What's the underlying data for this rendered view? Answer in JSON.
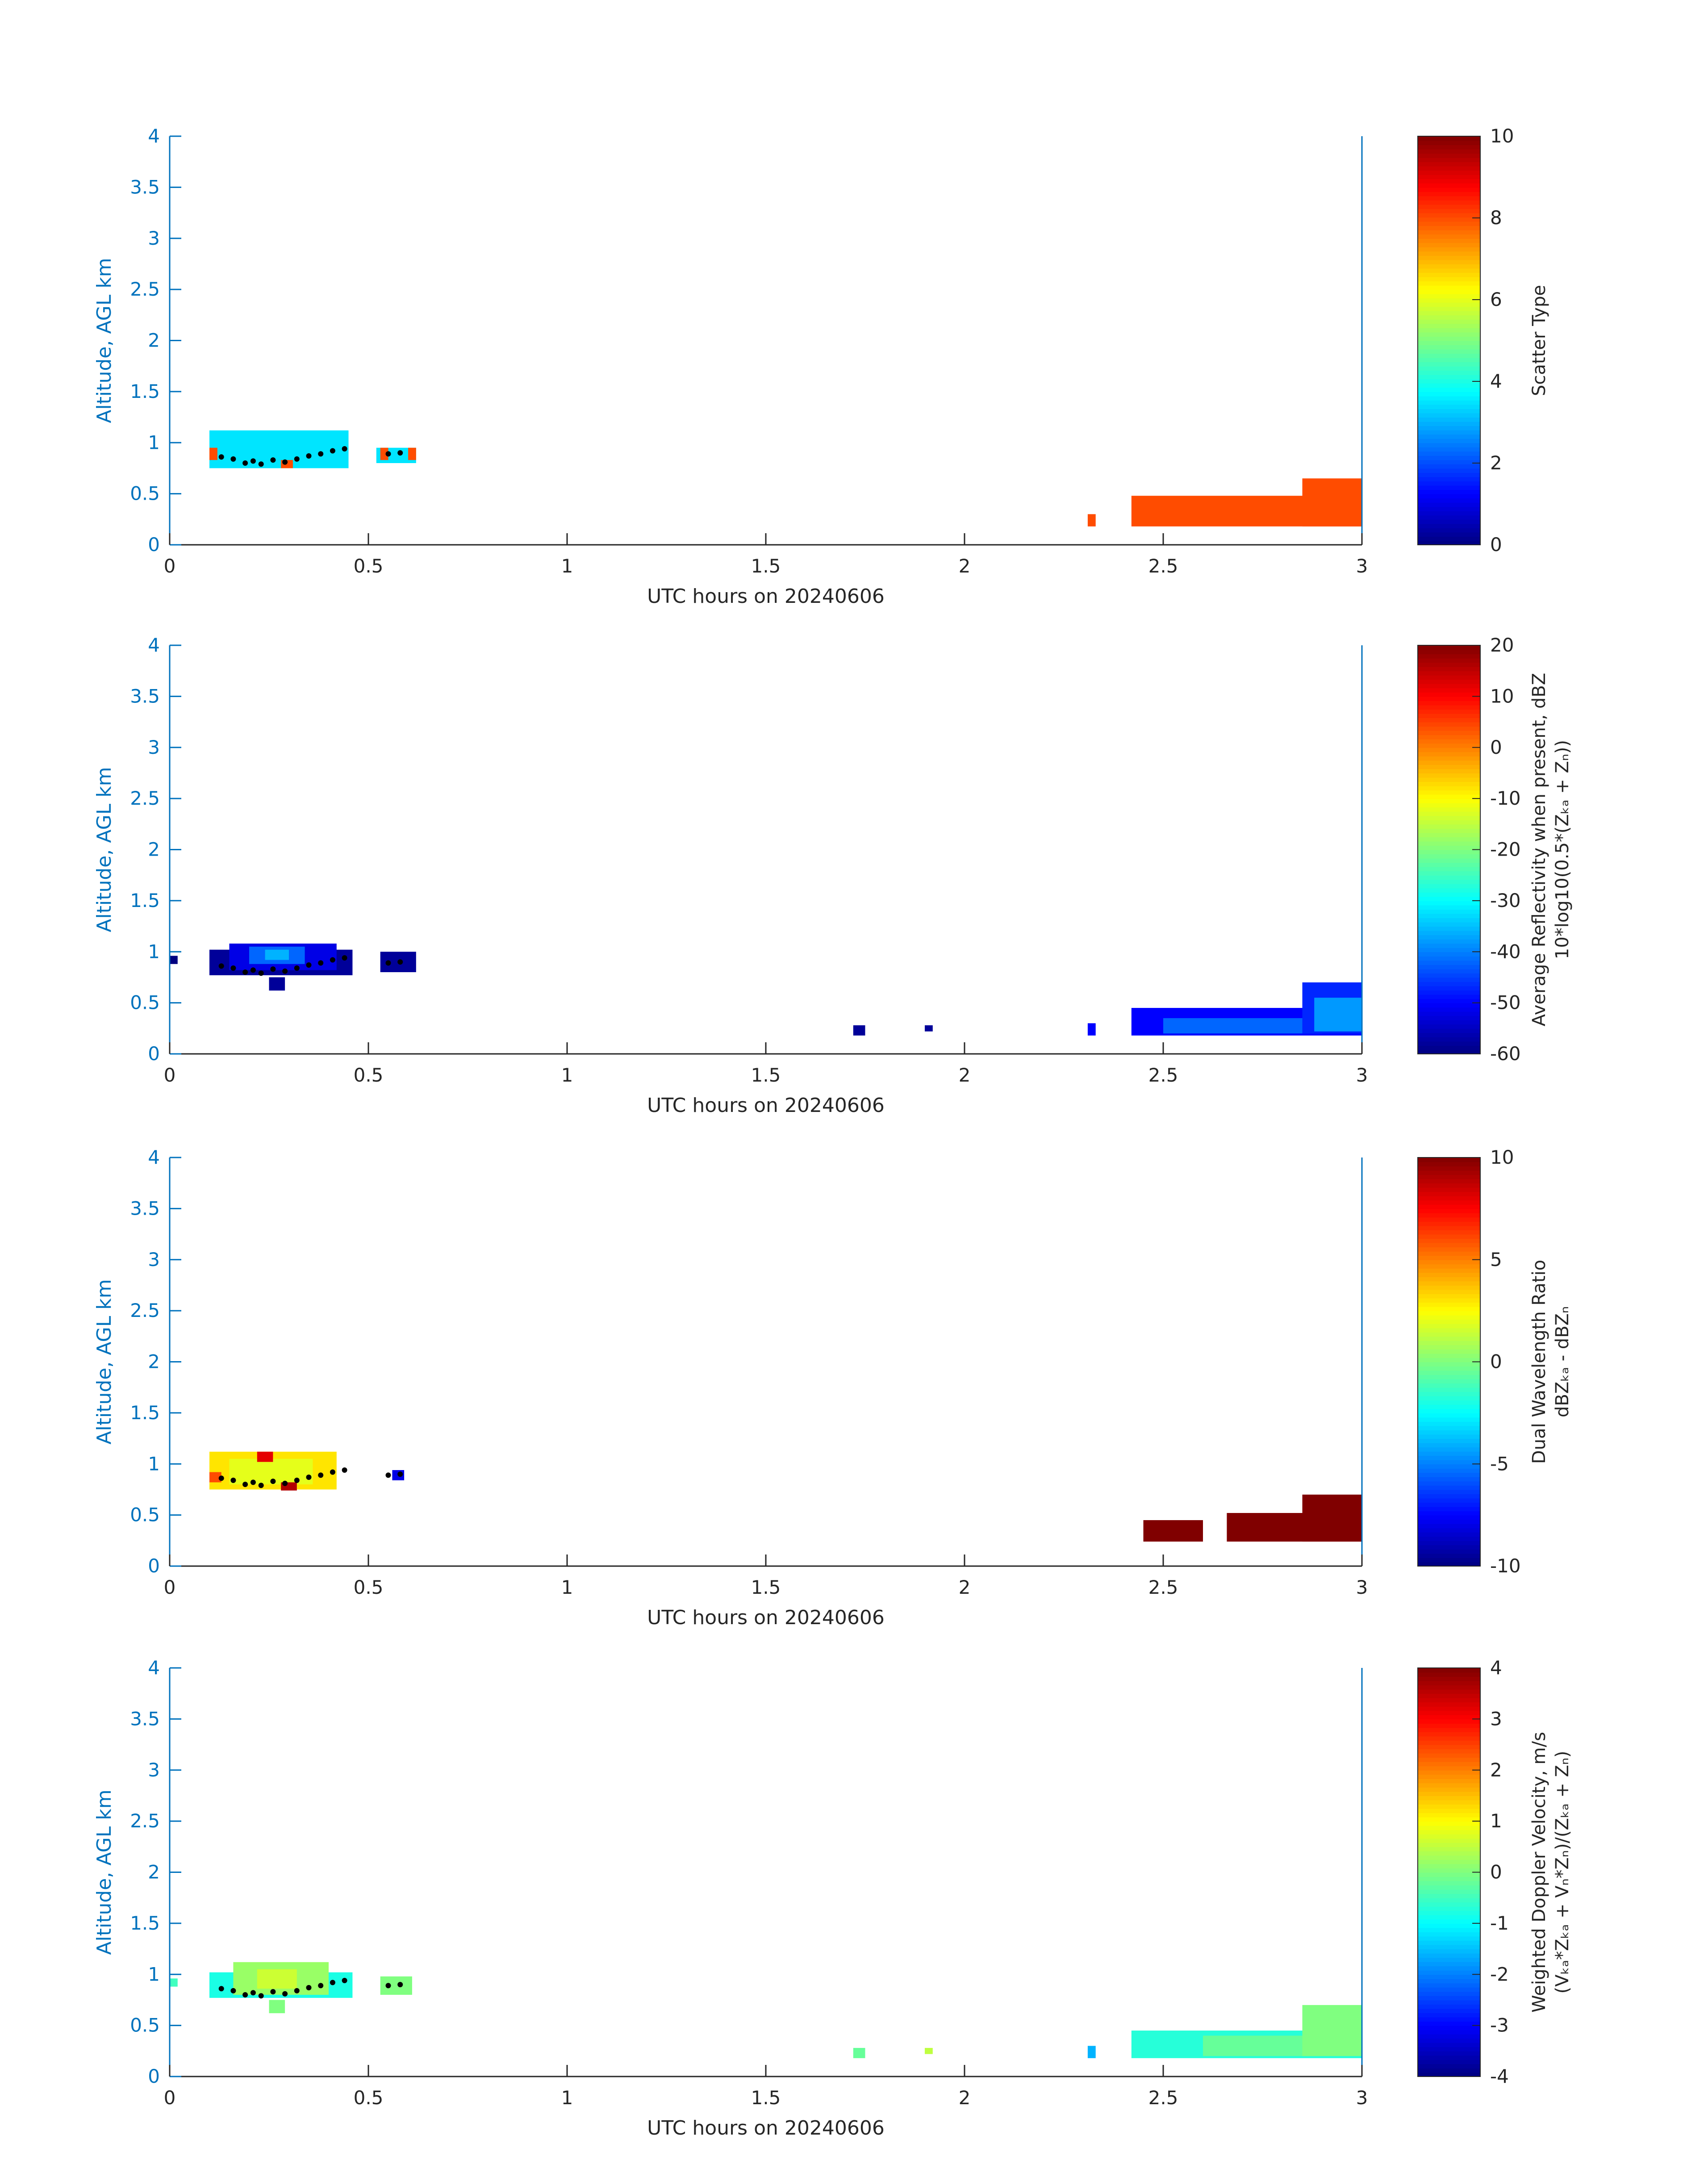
{
  "chart_data": [
    {
      "type": "heatmap",
      "xlabel": "UTC hours on 20240606",
      "ylabel": "Altitude, AGL km",
      "xlim": [
        0,
        3
      ],
      "ylim": [
        0,
        4
      ],
      "xticks": [
        "0",
        "0.5",
        "1",
        "1.5",
        "2",
        "2.5",
        "3"
      ],
      "yticks": [
        "0",
        "0.5",
        "1",
        "1.5",
        "2",
        "2.5",
        "3",
        "3.5",
        "4"
      ],
      "colorbar": {
        "label_lines": [
          "Scatter Type"
        ],
        "range": [
          0,
          10
        ],
        "ticks": [
          "0",
          "2",
          "4",
          "6",
          "8",
          "10"
        ],
        "colormap": "jet"
      },
      "regions": [
        {
          "x": [
            0.1,
            0.45
          ],
          "y": [
            0.75,
            1.12
          ],
          "value": 3.5
        },
        {
          "x": [
            0.52,
            0.62
          ],
          "y": [
            0.8,
            0.95
          ],
          "value": 3.5
        },
        {
          "x": [
            0.1,
            0.12
          ],
          "y": [
            0.83,
            0.95
          ],
          "value": 8.0
        },
        {
          "x": [
            0.28,
            0.31
          ],
          "y": [
            0.75,
            0.83
          ],
          "value": 8.0
        },
        {
          "x": [
            0.53,
            0.55
          ],
          "y": [
            0.83,
            0.95
          ],
          "value": 8.0
        },
        {
          "x": [
            0.6,
            0.62
          ],
          "y": [
            0.83,
            0.95
          ],
          "value": 8.0
        },
        {
          "x": [
            2.31,
            2.33
          ],
          "y": [
            0.18,
            0.3
          ],
          "value": 8.0
        },
        {
          "x": [
            2.42,
            3.0
          ],
          "y": [
            0.18,
            0.48
          ],
          "value": 8.0
        },
        {
          "x": [
            2.85,
            3.0
          ],
          "y": [
            0.18,
            0.65
          ],
          "value": 8.0
        }
      ],
      "cloud_base_points": {
        "x": [
          0.13,
          0.16,
          0.19,
          0.21,
          0.23,
          0.26,
          0.29,
          0.32,
          0.35,
          0.38,
          0.41,
          0.44,
          0.55,
          0.58
        ],
        "y": [
          0.86,
          0.84,
          0.8,
          0.82,
          0.79,
          0.83,
          0.81,
          0.84,
          0.87,
          0.89,
          0.92,
          0.94,
          0.89,
          0.9
        ]
      }
    },
    {
      "type": "heatmap",
      "xlabel": "UTC hours on 20240606",
      "ylabel": "Altitude, AGL km",
      "xlim": [
        0,
        3
      ],
      "ylim": [
        0,
        4
      ],
      "xticks": [
        "0",
        "0.5",
        "1",
        "1.5",
        "2",
        "2.5",
        "3"
      ],
      "yticks": [
        "0",
        "0.5",
        "1",
        "1.5",
        "2",
        "2.5",
        "3",
        "3.5",
        "4"
      ],
      "colorbar": {
        "label_lines": [
          "Average Reflectivity when present, dBZ",
          "10*log10(0.5*(Zₖₐ + Zₙ))"
        ],
        "range": [
          -60,
          20
        ],
        "ticks": [
          "-60",
          "-50",
          "-40",
          "-30",
          "-20",
          "-10",
          "0",
          "10",
          "20"
        ],
        "colormap": "jet"
      },
      "regions": [
        {
          "x": [
            0.1,
            0.46
          ],
          "y": [
            0.77,
            1.02
          ],
          "value": -58
        },
        {
          "x": [
            0.15,
            0.42
          ],
          "y": [
            0.82,
            1.08
          ],
          "value": -52
        },
        {
          "x": [
            0.2,
            0.34
          ],
          "y": [
            0.88,
            1.05
          ],
          "value": -42
        },
        {
          "x": [
            0.24,
            0.3
          ],
          "y": [
            0.92,
            1.02
          ],
          "value": -36
        },
        {
          "x": [
            0.25,
            0.29
          ],
          "y": [
            0.62,
            0.75
          ],
          "value": -58
        },
        {
          "x": [
            0.53,
            0.62
          ],
          "y": [
            0.8,
            1.0
          ],
          "value": -58
        },
        {
          "x": [
            0.0,
            0.02
          ],
          "y": [
            0.88,
            0.96
          ],
          "value": -60
        },
        {
          "x": [
            1.72,
            1.75
          ],
          "y": [
            0.18,
            0.28
          ],
          "value": -58
        },
        {
          "x": [
            1.9,
            1.92
          ],
          "y": [
            0.22,
            0.28
          ],
          "value": -58
        },
        {
          "x": [
            2.31,
            2.33
          ],
          "y": [
            0.18,
            0.3
          ],
          "value": -50
        },
        {
          "x": [
            2.42,
            3.0
          ],
          "y": [
            0.18,
            0.45
          ],
          "value": -50
        },
        {
          "x": [
            2.5,
            2.9
          ],
          "y": [
            0.2,
            0.35
          ],
          "value": -42
        },
        {
          "x": [
            2.85,
            3.0
          ],
          "y": [
            0.2,
            0.7
          ],
          "value": -47
        },
        {
          "x": [
            2.88,
            3.0
          ],
          "y": [
            0.22,
            0.55
          ],
          "value": -38
        }
      ],
      "cloud_base_points": {
        "x": [
          0.13,
          0.16,
          0.19,
          0.21,
          0.23,
          0.26,
          0.29,
          0.32,
          0.35,
          0.38,
          0.41,
          0.44,
          0.55,
          0.58
        ],
        "y": [
          0.86,
          0.84,
          0.8,
          0.82,
          0.79,
          0.83,
          0.81,
          0.84,
          0.87,
          0.89,
          0.92,
          0.94,
          0.89,
          0.9
        ]
      }
    },
    {
      "type": "heatmap",
      "xlabel": "UTC hours on 20240606",
      "ylabel": "Altitude, AGL km",
      "xlim": [
        0,
        3
      ],
      "ylim": [
        0,
        4
      ],
      "xticks": [
        "0",
        "0.5",
        "1",
        "1.5",
        "2",
        "2.5",
        "3"
      ],
      "yticks": [
        "0",
        "0.5",
        "1",
        "1.5",
        "2",
        "2.5",
        "3",
        "3.5",
        "4"
      ],
      "colorbar": {
        "label_lines": [
          "Dual Wavelength Ratio",
          "dBZₖₐ - dBZₙ"
        ],
        "range": [
          -10,
          10
        ],
        "ticks": [
          "-10",
          "-5",
          "0",
          "5",
          "10"
        ],
        "colormap": "jet"
      },
      "regions": [
        {
          "x": [
            0.1,
            0.42
          ],
          "y": [
            0.75,
            1.12
          ],
          "value": 3
        },
        {
          "x": [
            0.15,
            0.36
          ],
          "y": [
            0.8,
            1.05
          ],
          "value": 2
        },
        {
          "x": [
            0.1,
            0.13
          ],
          "y": [
            0.82,
            0.92
          ],
          "value": 6
        },
        {
          "x": [
            0.22,
            0.26
          ],
          "y": [
            1.02,
            1.12
          ],
          "value": 8
        },
        {
          "x": [
            0.28,
            0.32
          ],
          "y": [
            0.74,
            0.82
          ],
          "value": 9
        },
        {
          "x": [
            0.56,
            0.59
          ],
          "y": [
            0.84,
            0.94
          ],
          "value": -8
        },
        {
          "x": [
            2.45,
            2.6
          ],
          "y": [
            0.24,
            0.45
          ],
          "value": 10
        },
        {
          "x": [
            2.66,
            3.0
          ],
          "y": [
            0.24,
            0.52
          ],
          "value": 10
        },
        {
          "x": [
            2.85,
            3.0
          ],
          "y": [
            0.24,
            0.7
          ],
          "value": 10
        }
      ],
      "cloud_base_points": {
        "x": [
          0.13,
          0.16,
          0.19,
          0.21,
          0.23,
          0.26,
          0.29,
          0.32,
          0.35,
          0.38,
          0.41,
          0.44,
          0.55,
          0.58
        ],
        "y": [
          0.86,
          0.84,
          0.8,
          0.82,
          0.79,
          0.83,
          0.81,
          0.84,
          0.87,
          0.89,
          0.92,
          0.94,
          0.89,
          0.9
        ]
      }
    },
    {
      "type": "heatmap",
      "xlabel": "UTC hours on 20240606",
      "ylabel": "Altitude, AGL km",
      "xlim": [
        0,
        3
      ],
      "ylim": [
        0,
        4
      ],
      "xticks": [
        "0",
        "0.5",
        "1",
        "1.5",
        "2",
        "2.5",
        "3"
      ],
      "yticks": [
        "0",
        "0.5",
        "1",
        "1.5",
        "2",
        "2.5",
        "3",
        "3.5",
        "4"
      ],
      "colorbar": {
        "label_lines": [
          "Weighted Doppler Velocity, m/s",
          "(Vₖₐ*Zₖₐ + Vₙ*Zₙ)/(Zₖₐ + Zₙ)"
        ],
        "range": [
          -4,
          4
        ],
        "ticks": [
          "-4",
          "-3",
          "-2",
          "-1",
          "0",
          "1",
          "2",
          "3",
          "4"
        ],
        "colormap": "jet"
      },
      "regions": [
        {
          "x": [
            0.1,
            0.46
          ],
          "y": [
            0.77,
            1.02
          ],
          "value": -0.8
        },
        {
          "x": [
            0.16,
            0.4
          ],
          "y": [
            0.8,
            1.12
          ],
          "value": 0.2
        },
        {
          "x": [
            0.22,
            0.32
          ],
          "y": [
            0.86,
            1.05
          ],
          "value": 0.6
        },
        {
          "x": [
            0.25,
            0.29
          ],
          "y": [
            0.62,
            0.75
          ],
          "value": 0.0
        },
        {
          "x": [
            0.53,
            0.61
          ],
          "y": [
            0.8,
            0.98
          ],
          "value": 0.0
        },
        {
          "x": [
            0.0,
            0.02
          ],
          "y": [
            0.88,
            0.96
          ],
          "value": -0.5
        },
        {
          "x": [
            1.72,
            1.75
          ],
          "y": [
            0.18,
            0.28
          ],
          "value": -0.2
        },
        {
          "x": [
            1.9,
            1.92
          ],
          "y": [
            0.22,
            0.28
          ],
          "value": 0.5
        },
        {
          "x": [
            2.31,
            2.33
          ],
          "y": [
            0.18,
            0.3
          ],
          "value": -1.6
        },
        {
          "x": [
            2.42,
            3.0
          ],
          "y": [
            0.18,
            0.45
          ],
          "value": -0.7
        },
        {
          "x": [
            2.6,
            2.9
          ],
          "y": [
            0.2,
            0.4
          ],
          "value": -0.2
        },
        {
          "x": [
            2.85,
            3.0
          ],
          "y": [
            0.2,
            0.7
          ],
          "value": 0.0
        }
      ],
      "cloud_base_points": {
        "x": [
          0.13,
          0.16,
          0.19,
          0.21,
          0.23,
          0.26,
          0.29,
          0.32,
          0.35,
          0.38,
          0.41,
          0.44,
          0.55,
          0.58
        ],
        "y": [
          0.86,
          0.84,
          0.8,
          0.82,
          0.79,
          0.83,
          0.81,
          0.84,
          0.87,
          0.89,
          0.92,
          0.94,
          0.89,
          0.9
        ]
      }
    }
  ],
  "colors": {
    "axis": "#0072BD",
    "text": "#262626",
    "cloud_base_marker": "#000000"
  }
}
